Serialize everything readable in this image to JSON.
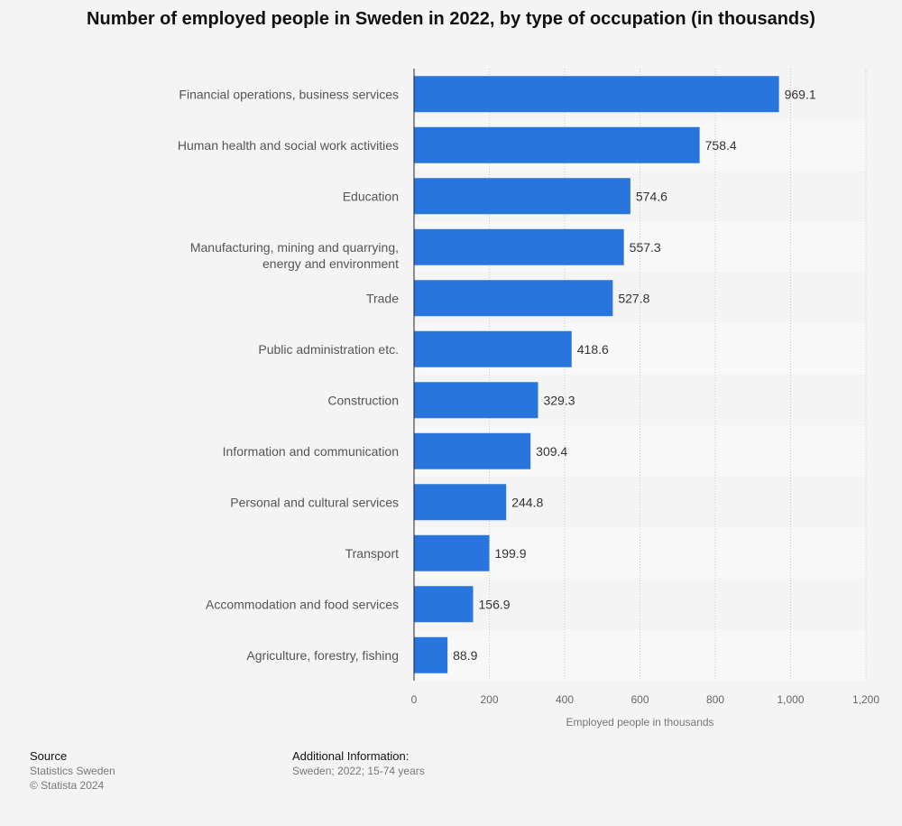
{
  "chart_data": {
    "type": "bar",
    "orientation": "horizontal",
    "title": "Number of employed people in Sweden in 2022, by type of occupation (in thousands)",
    "xlabel": "Employed people in thousands",
    "ylabel": "",
    "xlim": [
      0,
      1200
    ],
    "xticks": [
      0,
      200,
      400,
      600,
      800,
      1000,
      1200
    ],
    "xtick_labels": [
      "0",
      "200",
      "400",
      "600",
      "800",
      "1,000",
      "1,200"
    ],
    "grid": true,
    "bar_color": "#2876dd",
    "categories": [
      "Financial operations, business services",
      "Human health and social work activities",
      "Education",
      "Manufacturing, mining and quarrying, energy and environment",
      "Trade",
      "Public administration etc.",
      "Construction",
      "Information and communication",
      "Personal and cultural services",
      "Transport",
      "Accommodation and food services",
      "Agriculture, forestry, fishing"
    ],
    "values": [
      969.1,
      758.4,
      574.6,
      557.3,
      527.8,
      418.6,
      329.3,
      309.4,
      244.8,
      199.9,
      156.9,
      88.9
    ],
    "value_labels": [
      "969.1",
      "758.4",
      "574.6",
      "557.3",
      "527.8",
      "418.6",
      "329.3",
      "309.4",
      "244.8",
      "199.9",
      "156.9",
      "88.9"
    ]
  },
  "footer": {
    "source_heading": "Source",
    "source_lines": [
      "Statistics Sweden",
      "© Statista 2024"
    ],
    "info_heading": "Additional Information:",
    "info_lines": [
      "Sweden; 2022; 15-74 years"
    ]
  }
}
